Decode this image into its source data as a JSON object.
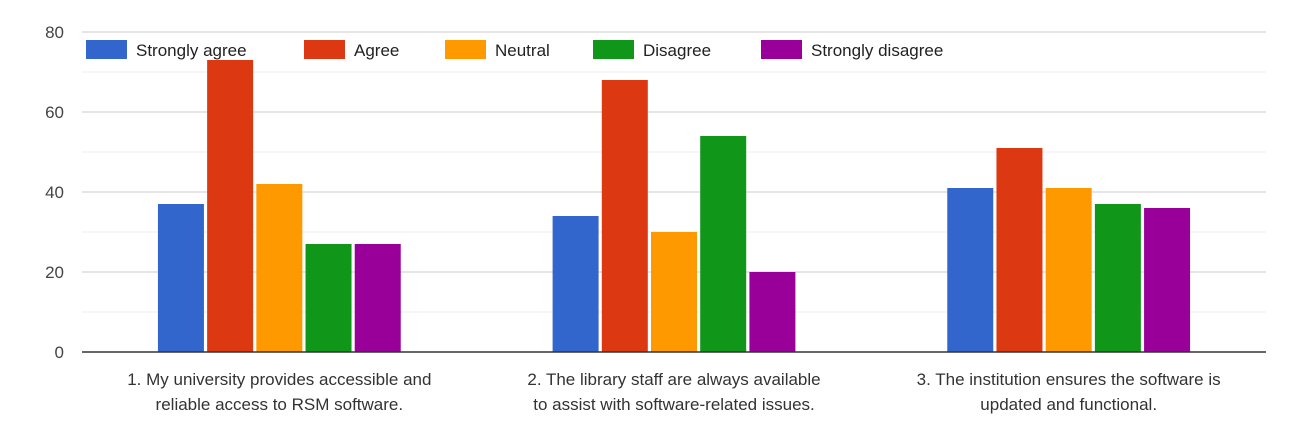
{
  "chart_data": {
    "type": "bar",
    "title": "",
    "xlabel": "",
    "ylabel": "",
    "ylim": [
      0,
      80
    ],
    "yticks": [
      0,
      20,
      40,
      60,
      80
    ],
    "grid": true,
    "minor_grid": true,
    "legend_position": "top",
    "categories": [
      [
        "1. My university provides accessible and",
        "reliable access to RSM software."
      ],
      [
        "2. The library staff are always available",
        "to assist with software-related issues."
      ],
      [
        "3. The institution ensures the software is",
        "updated and functional."
      ]
    ],
    "series": [
      {
        "name": "Strongly agree",
        "color": "#3366cc",
        "values": [
          37,
          34,
          41
        ]
      },
      {
        "name": "Agree",
        "color": "#dc3912",
        "values": [
          73,
          68,
          51
        ]
      },
      {
        "name": "Neutral",
        "color": "#ff9900",
        "values": [
          42,
          30,
          41
        ]
      },
      {
        "name": "Disagree",
        "color": "#109618",
        "values": [
          27,
          54,
          37
        ]
      },
      {
        "name": "Strongly disagree",
        "color": "#990099",
        "values": [
          27,
          20,
          36
        ]
      }
    ]
  }
}
